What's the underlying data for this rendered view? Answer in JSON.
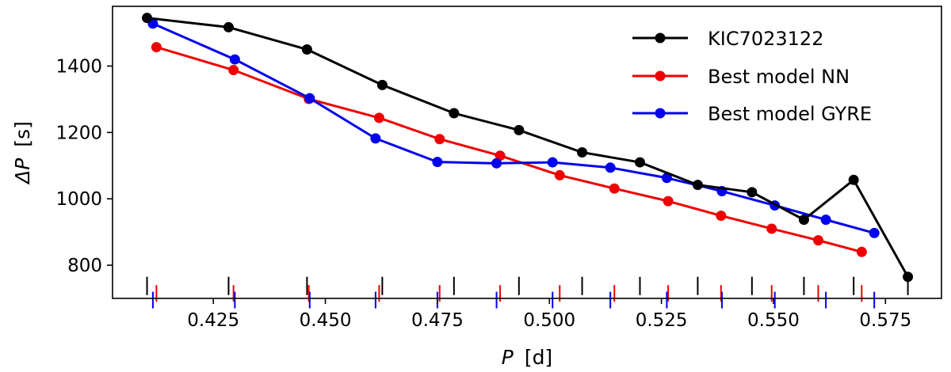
{
  "chart_data": {
    "type": "line",
    "title": "",
    "xlabel_var": "P",
    "xlabel_unit": "[d]",
    "ylabel_var": "ΔP",
    "ylabel_unit": "[s]",
    "xlim": [
      0.4025,
      0.5875
    ],
    "ylim": [
      700,
      1580
    ],
    "xticks": [
      0.425,
      0.45,
      0.475,
      0.5,
      0.525,
      0.55,
      0.575
    ],
    "xtick_labels": [
      "0.425",
      "0.450",
      "0.475",
      "0.500",
      "0.525",
      "0.550",
      "0.575"
    ],
    "yticks": [
      800,
      1000,
      1200,
      1400
    ],
    "ytick_labels": [
      "800",
      "1000",
      "1200",
      "1400"
    ],
    "legend_position": "top-right",
    "series": [
      {
        "name": "KIC7023122",
        "color": "#000000",
        "x": [
          0.4102,
          0.4284,
          0.4459,
          0.4627,
          0.4787,
          0.4932,
          0.5073,
          0.5202,
          0.5331,
          0.5452,
          0.5568,
          0.5679
        ],
        "y": [
          1545,
          1517,
          1450,
          1343,
          1258,
          1207,
          1140,
          1110,
          1042,
          1020,
          937,
          1057
        ]
      },
      {
        "name": "Best model NN",
        "color": "#ee0000",
        "x": [
          0.4123,
          0.4295,
          0.4463,
          0.462,
          0.4755,
          0.489,
          0.5023,
          0.5145,
          0.5265,
          0.5383,
          0.5496,
          0.56
        ],
        "y": [
          1457,
          1388,
          1301,
          1244,
          1180,
          1130,
          1071,
          1031,
          993,
          949,
          910,
          875
        ]
      },
      {
        "name": "Best model GYRE",
        "color": "#0000ee",
        "x": [
          0.4115,
          0.4298,
          0.4465,
          0.4612,
          0.475,
          0.4882,
          0.5007,
          0.5136,
          0.5262,
          0.5385,
          0.5503,
          0.5617
        ],
        "y": [
          1528,
          1420,
          1303,
          1182,
          1111,
          1107,
          1110,
          1094,
          1063,
          1023,
          980,
          937
        ]
      }
    ],
    "extra_points": [
      {
        "series": "KIC7023122",
        "x": 0.58,
        "y": 765
      },
      {
        "series": "Best model NN",
        "x": 0.5697,
        "y": 840
      },
      {
        "series": "Best model GYRE",
        "x": 0.5725,
        "y": 897
      }
    ],
    "period_markers": [
      {
        "series": "KIC7023122",
        "color": "#000000",
        "x": [
          0.4102,
          0.4284,
          0.4459,
          0.4627,
          0.4787,
          0.4932,
          0.5073,
          0.5202,
          0.5331,
          0.5452,
          0.5568,
          0.5679,
          0.58
        ],
        "y_range": [
          765,
          710
        ]
      },
      {
        "series": "Best model NN",
        "color": "#ee0000",
        "x": [
          0.4123,
          0.4295,
          0.4463,
          0.462,
          0.4755,
          0.489,
          0.5023,
          0.5145,
          0.5265,
          0.5383,
          0.5496,
          0.56,
          0.5697
        ],
        "y_range": [
          740,
          690
        ]
      },
      {
        "series": "Best model GYRE",
        "color": "#0000ee",
        "x": [
          0.4115,
          0.4298,
          0.4465,
          0.4612,
          0.475,
          0.4882,
          0.5007,
          0.5136,
          0.5262,
          0.5385,
          0.5503,
          0.5617,
          0.5725
        ],
        "y_range": [
          720,
          670
        ]
      }
    ]
  }
}
